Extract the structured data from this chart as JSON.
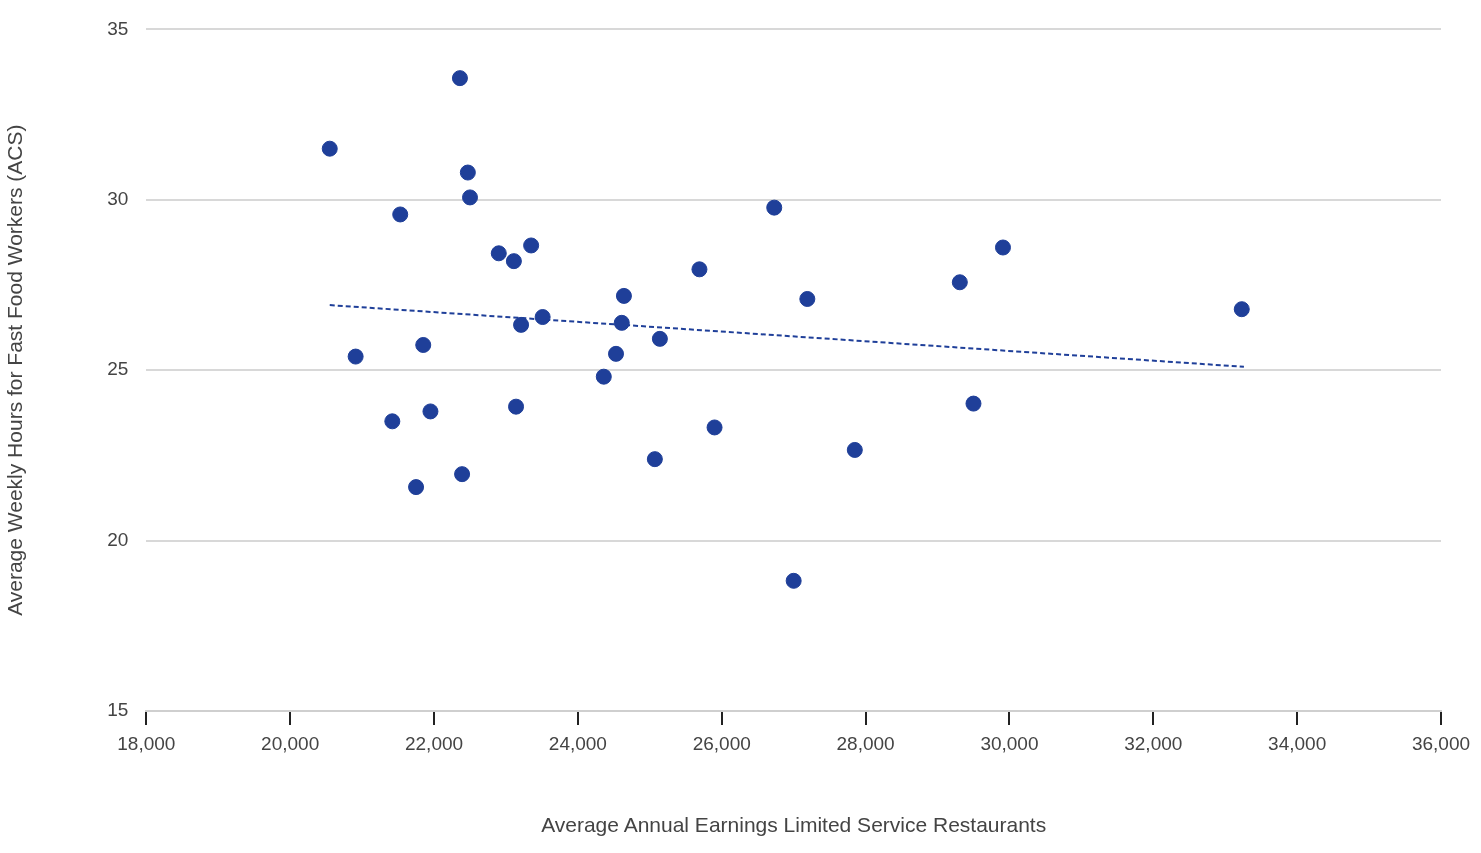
{
  "chart_data": {
    "type": "scatter",
    "xlabel": "Average Annual Earnings Limited Service Restaurants",
    "ylabel": "Average Weekly Hours for Fast Food Workers (ACS)",
    "xlim": [
      18000,
      36000
    ],
    "xticks": [
      {
        "value": 18000,
        "label": "18,000"
      },
      {
        "value": 20000,
        "label": "20,000"
      },
      {
        "value": 22000,
        "label": "22,000"
      },
      {
        "value": 24000,
        "label": "24,000"
      },
      {
        "value": 26000,
        "label": "26,000"
      },
      {
        "value": 28000,
        "label": "28,000"
      },
      {
        "value": 30000,
        "label": "30,000"
      },
      {
        "value": 32000,
        "label": "32,000"
      },
      {
        "value": 34000,
        "label": "34,000"
      },
      {
        "value": 36000,
        "label": "36,000"
      }
    ],
    "ylim": [
      15,
      35
    ],
    "yticks": [
      15,
      20,
      25,
      30,
      35
    ],
    "grid": "y",
    "legend": false,
    "series": [
      {
        "color": "#1f3f99",
        "marker": "circle",
        "x": [
          20550,
          22360,
          22470,
          22500,
          21530,
          22900,
          23110,
          23350,
          20910,
          21850,
          21420,
          21950,
          21750,
          22390,
          23210,
          23510,
          23140,
          24360,
          24530,
          24610,
          24640,
          25140,
          25070,
          25690,
          25900,
          26730,
          27190,
          27000,
          27850,
          29310,
          29500,
          29910,
          33230
        ],
        "values": [
          31.5,
          33.57,
          30.8,
          30.07,
          29.57,
          28.43,
          28.2,
          28.66,
          25.4,
          25.74,
          23.5,
          23.79,
          21.57,
          21.95,
          26.33,
          26.56,
          23.93,
          24.81,
          25.48,
          26.39,
          27.18,
          25.92,
          22.39,
          27.96,
          23.32,
          29.77,
          27.09,
          18.82,
          22.66,
          27.58,
          24.02,
          28.6,
          26.79
        ]
      },
      {
        "type": "line",
        "color": "#1f3f99",
        "marker": "none",
        "line_style": "dashed",
        "x": [
          20550,
          33260
        ],
        "values": [
          26.91,
          25.1
        ]
      }
    ]
  }
}
